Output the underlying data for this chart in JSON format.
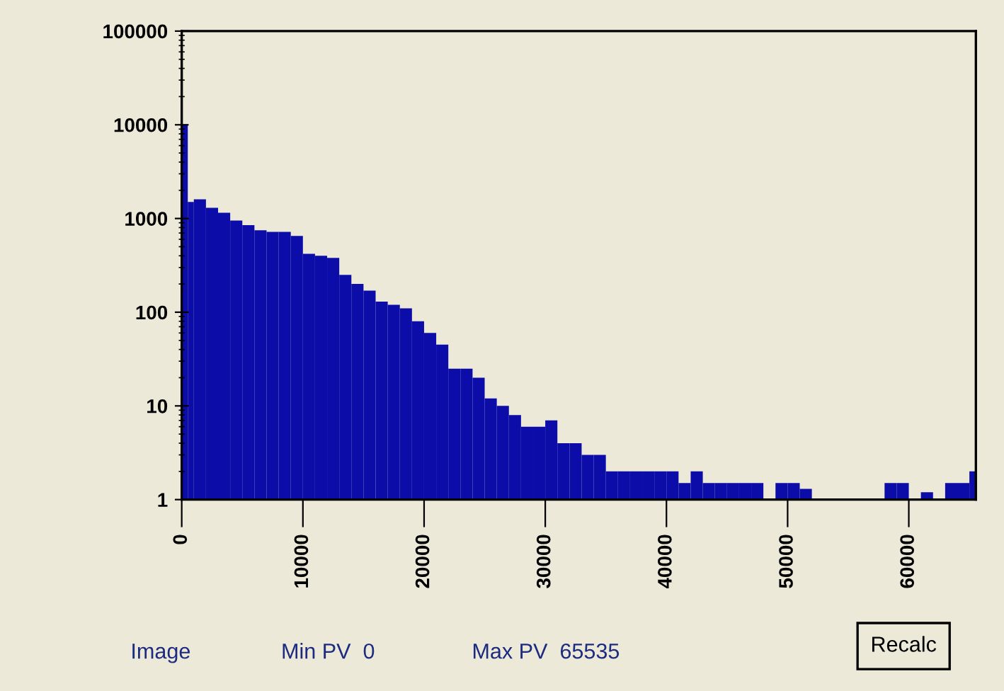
{
  "chart_data": {
    "type": "histogram",
    "color": "#0c0ca8",
    "log": "y",
    "bins": [
      0,
      500,
      1000,
      2000,
      3000,
      4000,
      5000,
      6000,
      7000,
      8000,
      9000,
      10000,
      11000,
      12000,
      13000,
      14000,
      15000,
      16000,
      17000,
      18000,
      19000,
      20000,
      21000,
      22000,
      23000,
      24000,
      25000,
      26000,
      27000,
      28000,
      29000,
      30000,
      31000,
      32000,
      33000,
      34000,
      35000,
      36000,
      37000,
      38000,
      39000,
      40000,
      41000,
      42000,
      43000,
      44000,
      45000,
      46000,
      47000,
      48000,
      49000,
      50000,
      51000,
      52000,
      58000,
      59000,
      60000,
      61000,
      62000,
      63000,
      64000,
      65000,
      65536
    ],
    "values": [
      10000,
      1500,
      1600,
      1300,
      1150,
      950,
      850,
      750,
      720,
      720,
      650,
      420,
      400,
      380,
      250,
      200,
      170,
      130,
      120,
      110,
      80,
      60,
      45,
      25,
      25,
      20,
      12,
      10,
      8,
      6,
      6,
      7,
      4,
      4,
      3,
      3,
      2,
      2,
      2,
      2,
      2,
      2,
      1.5,
      2,
      1.5,
      1.5,
      1.5,
      1.5,
      1.5,
      1,
      1.5,
      1.5,
      1.3,
      1,
      1.5,
      1.5,
      1,
      1.2,
      1,
      1.5,
      1.5,
      2
    ],
    "xlim": [
      0,
      65536
    ],
    "ylim": [
      1,
      100000
    ],
    "xticks": [
      0,
      10000,
      20000,
      30000,
      40000,
      50000,
      60000
    ],
    "yticks": [
      1,
      10,
      100,
      1000,
      10000,
      100000
    ],
    "grid": false,
    "annotations": [
      "Image",
      "Min PV  0",
      "Max PV  65535",
      "Recalc"
    ]
  }
}
